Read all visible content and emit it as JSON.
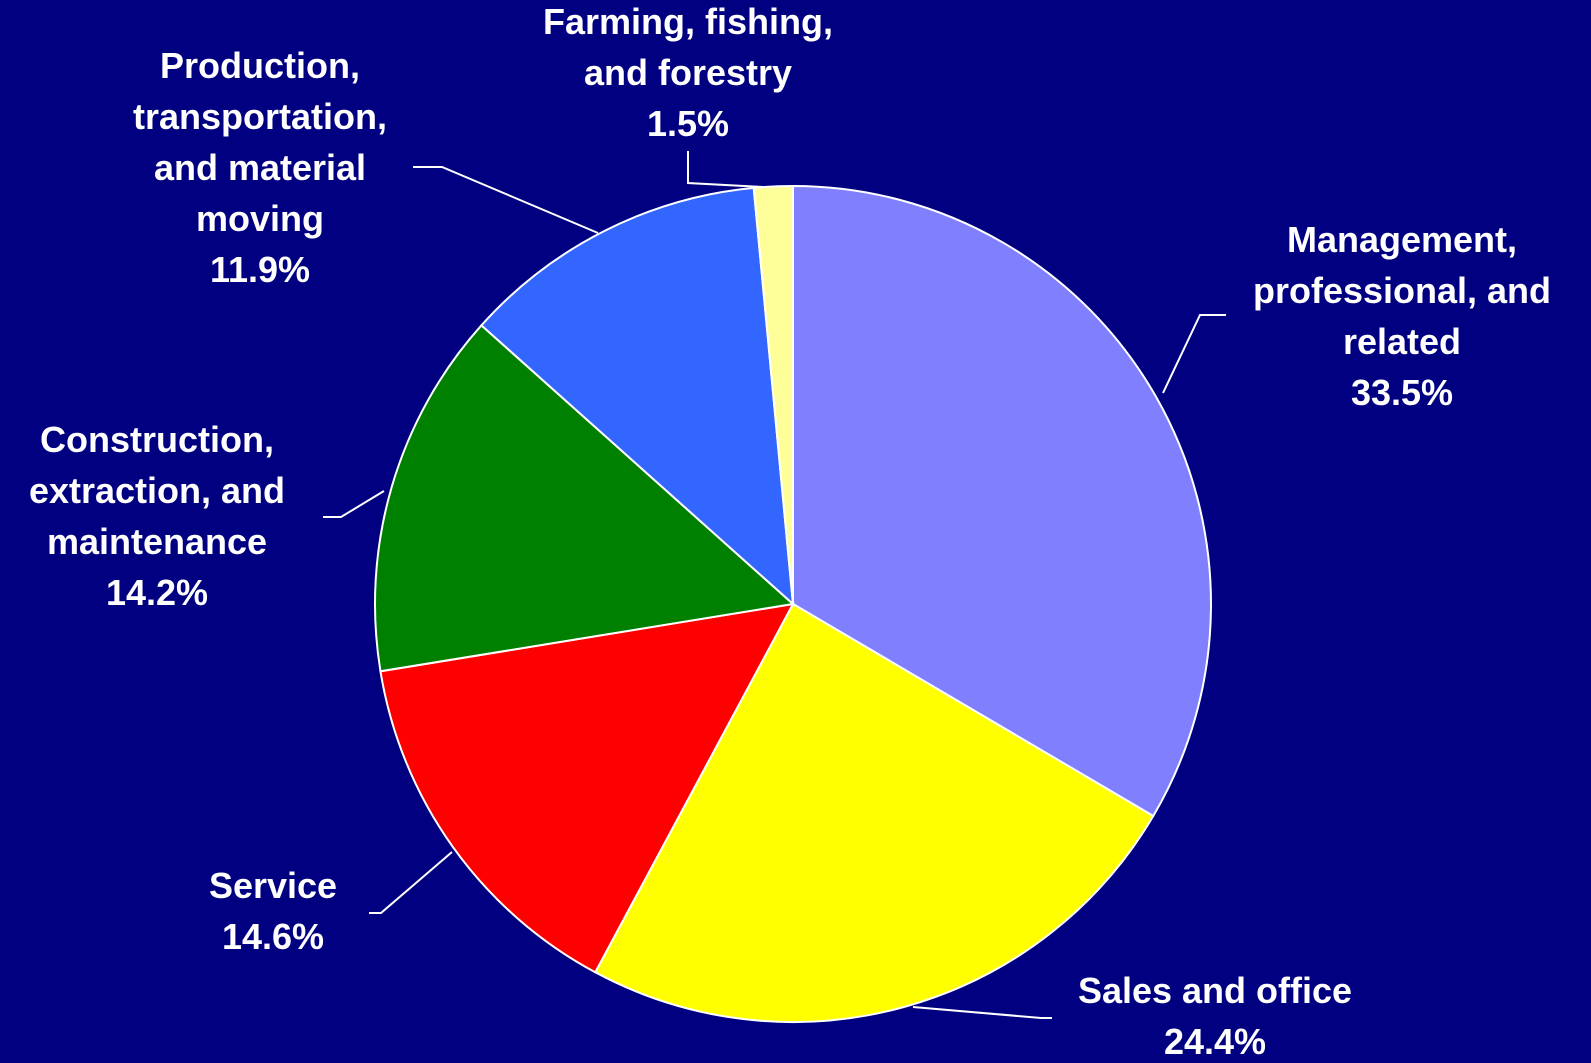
{
  "chart_data": {
    "type": "pie",
    "title": "",
    "background": "#000080",
    "slices": [
      {
        "label_lines": [
          "Management,",
          "professional, and",
          "related"
        ],
        "label": "Management, professional, and related",
        "value": 33.5,
        "value_label": "33.5%",
        "color": "#8080FF"
      },
      {
        "label_lines": [
          "Sales and office"
        ],
        "label": "Sales and office",
        "value": 24.4,
        "value_label": "24.4%",
        "color": "#FFFF00"
      },
      {
        "label_lines": [
          "Service"
        ],
        "label": "Service",
        "value": 14.6,
        "value_label": "14.6%",
        "color": "#FF0000"
      },
      {
        "label_lines": [
          "Construction,",
          "extraction, and",
          "maintenance"
        ],
        "label": "Construction, extraction, and maintenance",
        "value": 14.2,
        "value_label": "14.2%",
        "color": "#008000"
      },
      {
        "label_lines": [
          "Production,",
          "transportation,",
          "and material",
          "moving"
        ],
        "label": "Production, transportation, and material moving",
        "value": 11.9,
        "value_label": "11.9%",
        "color": "#3366FF"
      },
      {
        "label_lines": [
          "Farming, fishing,",
          "and forestry"
        ],
        "label": "Farming, fishing, and forestry",
        "value": 1.5,
        "value_label": "1.5%",
        "color": "#FFFF99"
      }
    ],
    "start_angle": "12 o'clock",
    "direction": "clockwise",
    "legend": "none",
    "labels": "outside with leader lines"
  }
}
